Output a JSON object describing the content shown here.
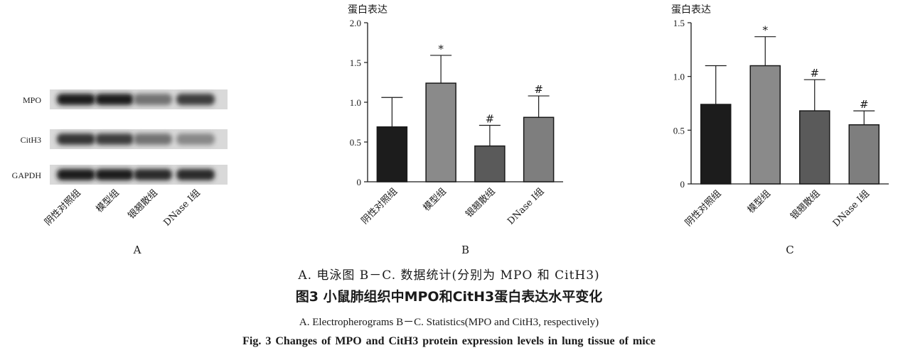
{
  "panel_a": {
    "bands": [
      "MPO",
      "CitH3",
      "GAPDH"
    ],
    "groups": [
      "阴性对照组",
      "模型组",
      "银翘散组",
      "DNase Ⅰ组"
    ],
    "panel_label": "A"
  },
  "chart_data": [
    {
      "type": "bar",
      "panel_label": "B",
      "ylabel": "蛋白表达",
      "categories": [
        "阴性对照组",
        "模型组",
        "银翘散组",
        "DNase Ⅰ组"
      ],
      "values": [
        0.69,
        1.24,
        0.45,
        0.81
      ],
      "errors": [
        0.37,
        0.35,
        0.26,
        0.27
      ],
      "annotations": [
        "",
        "*",
        "#",
        "#"
      ],
      "bar_colors": [
        "#1c1c1c",
        "#8a8a8a",
        "#5a5a5a",
        "#7e7e7e"
      ],
      "ylim": [
        0,
        2.0
      ],
      "yticks": [
        "0",
        "0.5",
        "1.0",
        "1.5",
        "2.0"
      ]
    },
    {
      "type": "bar",
      "panel_label": "C",
      "ylabel": "蛋白表达",
      "categories": [
        "阴性对照组",
        "模型组",
        "银翘散组",
        "DNase Ⅰ组"
      ],
      "values": [
        0.74,
        1.1,
        0.68,
        0.55
      ],
      "errors": [
        0.36,
        0.27,
        0.29,
        0.13
      ],
      "annotations": [
        "",
        "*",
        "#",
        "#"
      ],
      "bar_colors": [
        "#1c1c1c",
        "#8a8a8a",
        "#5a5a5a",
        "#7e7e7e"
      ],
      "ylim": [
        0,
        1.5
      ],
      "yticks": [
        "0",
        "0.5",
        "1.0",
        "1.5"
      ]
    }
  ],
  "captions": {
    "zh_sub": "A. 电泳图    B－C. 数据统计(分别为 MPO 和 CitH3)",
    "zh_title": "图3   小鼠肺组织中MPO和CitH3蛋白表达水平变化",
    "en_sub": "A. Electropherograms    B－C. Statistics(MPO  and  CitH3, respectively)",
    "en_title": "Fig. 3   Changes of MPO and CitH3 protein expression levels in lung tissue of mice"
  }
}
